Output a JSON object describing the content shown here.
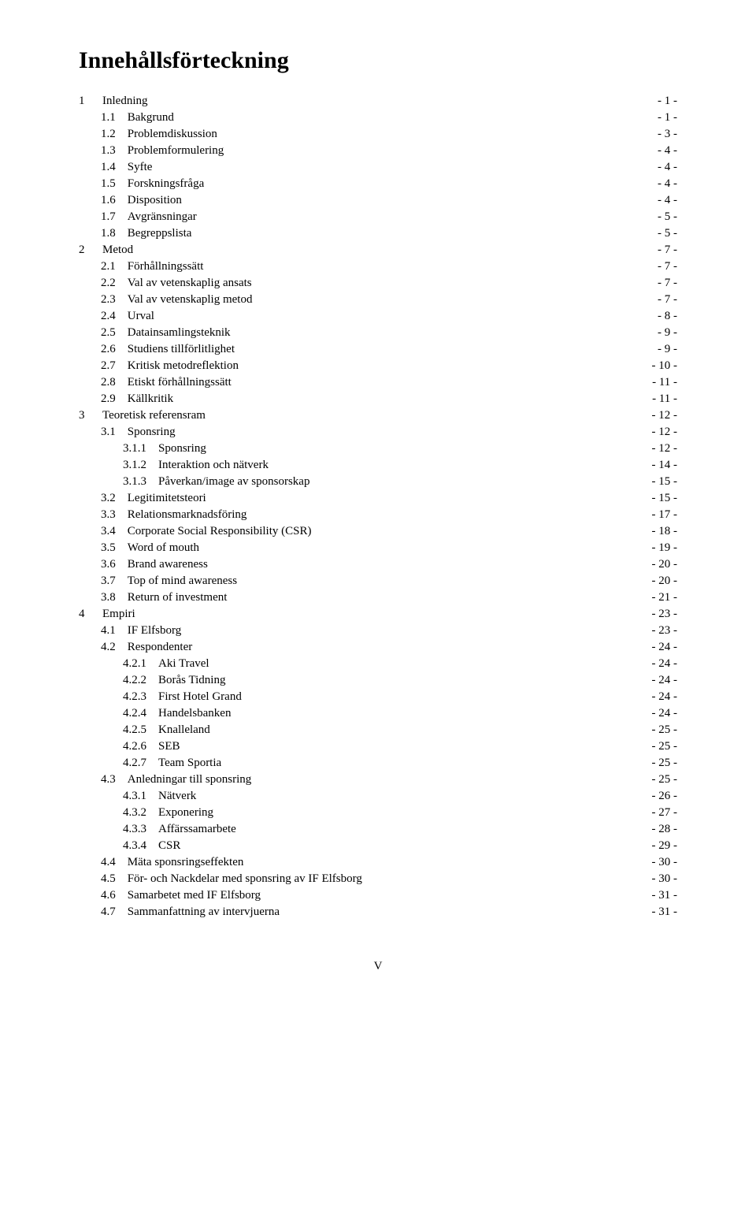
{
  "title": "Innehållsförteckning",
  "footer": "V",
  "toc": [
    {
      "indent": 0,
      "num": "1",
      "text": "Inledning",
      "page": "- 1 -"
    },
    {
      "indent": 1,
      "num": "1.1",
      "text": "Bakgrund",
      "page": "- 1 -"
    },
    {
      "indent": 1,
      "num": "1.2",
      "text": "Problemdiskussion",
      "page": "- 3 -"
    },
    {
      "indent": 1,
      "num": "1.3",
      "text": "Problemformulering",
      "page": "- 4 -"
    },
    {
      "indent": 1,
      "num": "1.4",
      "text": "Syfte",
      "page": "- 4 -"
    },
    {
      "indent": 1,
      "num": "1.5",
      "text": "Forskningsfråga",
      "page": "- 4 -"
    },
    {
      "indent": 1,
      "num": "1.6",
      "text": "Disposition",
      "page": "- 4 -"
    },
    {
      "indent": 1,
      "num": "1.7",
      "text": "Avgränsningar",
      "page": "- 5 -"
    },
    {
      "indent": 1,
      "num": "1.8",
      "text": "Begreppslista",
      "page": "- 5 -"
    },
    {
      "indent": 0,
      "num": "2",
      "text": "Metod",
      "page": "- 7 -"
    },
    {
      "indent": 1,
      "num": "2.1",
      "text": "Förhållningssätt",
      "page": "- 7 -"
    },
    {
      "indent": 1,
      "num": "2.2",
      "text": "Val av vetenskaplig ansats",
      "page": "- 7 -"
    },
    {
      "indent": 1,
      "num": "2.3",
      "text": "Val av vetenskaplig metod",
      "page": "- 7 -"
    },
    {
      "indent": 1,
      "num": "2.4",
      "text": "Urval",
      "page": "- 8 -"
    },
    {
      "indent": 1,
      "num": "2.5",
      "text": "Datainsamlingsteknik",
      "page": "- 9 -"
    },
    {
      "indent": 1,
      "num": "2.6",
      "text": "Studiens tillförlitlighet",
      "page": "- 9 -"
    },
    {
      "indent": 1,
      "num": "2.7",
      "text": "Kritisk metodreflektion",
      "page": "- 10 -"
    },
    {
      "indent": 1,
      "num": "2.8",
      "text": "Etiskt förhållningssätt",
      "page": "- 11 -"
    },
    {
      "indent": 1,
      "num": "2.9",
      "text": "Källkritik",
      "page": "- 11 -"
    },
    {
      "indent": 0,
      "num": "3",
      "text": "Teoretisk referensram",
      "page": "- 12 -"
    },
    {
      "indent": 1,
      "num": "3.1",
      "text": "Sponsring",
      "page": "- 12 -"
    },
    {
      "indent": 2,
      "num": "3.1.1",
      "text": "Sponsring",
      "page": "- 12 -"
    },
    {
      "indent": 2,
      "num": "3.1.2",
      "text": "Interaktion och nätverk",
      "page": "- 14 -"
    },
    {
      "indent": 2,
      "num": "3.1.3",
      "text": "Påverkan/image av sponsorskap",
      "page": "- 15 -"
    },
    {
      "indent": 1,
      "num": "3.2",
      "text": "Legitimitetsteori",
      "page": "- 15 -"
    },
    {
      "indent": 1,
      "num": "3.3",
      "text": "Relationsmarknadsföring",
      "page": "- 17 -"
    },
    {
      "indent": 1,
      "num": "3.4",
      "text": "Corporate Social Responsibility (CSR)",
      "page": "- 18 -"
    },
    {
      "indent": 1,
      "num": "3.5",
      "text": "Word of mouth",
      "page": "- 19 -"
    },
    {
      "indent": 1,
      "num": "3.6",
      "text": "Brand awareness",
      "page": "- 20 -"
    },
    {
      "indent": 1,
      "num": "3.7",
      "text": "Top of mind awareness",
      "page": "- 20 -"
    },
    {
      "indent": 1,
      "num": "3.8",
      "text": "Return of investment",
      "page": "- 21 -"
    },
    {
      "indent": 0,
      "num": "4",
      "text": "Empiri",
      "page": "- 23 -"
    },
    {
      "indent": 1,
      "num": "4.1",
      "text": "IF Elfsborg",
      "page": "- 23 -"
    },
    {
      "indent": 1,
      "num": "4.2",
      "text": "Respondenter",
      "page": "- 24 -"
    },
    {
      "indent": 2,
      "num": "4.2.1",
      "text": "Aki Travel",
      "page": "- 24 -"
    },
    {
      "indent": 2,
      "num": "4.2.2",
      "text": "Borås Tidning",
      "page": "- 24 -"
    },
    {
      "indent": 2,
      "num": "4.2.3",
      "text": "First Hotel Grand",
      "page": "- 24 -"
    },
    {
      "indent": 2,
      "num": "4.2.4",
      "text": "Handelsbanken",
      "page": "- 24 -"
    },
    {
      "indent": 2,
      "num": "4.2.5",
      "text": "Knalleland",
      "page": "- 25 -"
    },
    {
      "indent": 2,
      "num": "4.2.6",
      "text": "SEB",
      "page": "- 25 -"
    },
    {
      "indent": 2,
      "num": "4.2.7",
      "text": "Team Sportia",
      "page": "- 25 -"
    },
    {
      "indent": 1,
      "num": "4.3",
      "text": "Anledningar till sponsring",
      "page": "- 25 -"
    },
    {
      "indent": 2,
      "num": "4.3.1",
      "text": "Nätverk",
      "page": "- 26 -"
    },
    {
      "indent": 2,
      "num": "4.3.2",
      "text": "Exponering",
      "page": "- 27 -"
    },
    {
      "indent": 2,
      "num": "4.3.3",
      "text": "Affärssamarbete",
      "page": "- 28 -"
    },
    {
      "indent": 2,
      "num": "4.3.4",
      "text": "CSR",
      "page": "- 29 -"
    },
    {
      "indent": 1,
      "num": "4.4",
      "text": "Mäta sponsringseffekten",
      "page": "- 30 -"
    },
    {
      "indent": 1,
      "num": "4.5",
      "text": "För- och Nackdelar med sponsring av IF Elfsborg",
      "page": "- 30 -"
    },
    {
      "indent": 1,
      "num": "4.6",
      "text": "Samarbetet med IF Elfsborg",
      "page": "- 31 -"
    },
    {
      "indent": 1,
      "num": "4.7",
      "text": "Sammanfattning av intervjuerna",
      "page": "- 31 -"
    }
  ]
}
